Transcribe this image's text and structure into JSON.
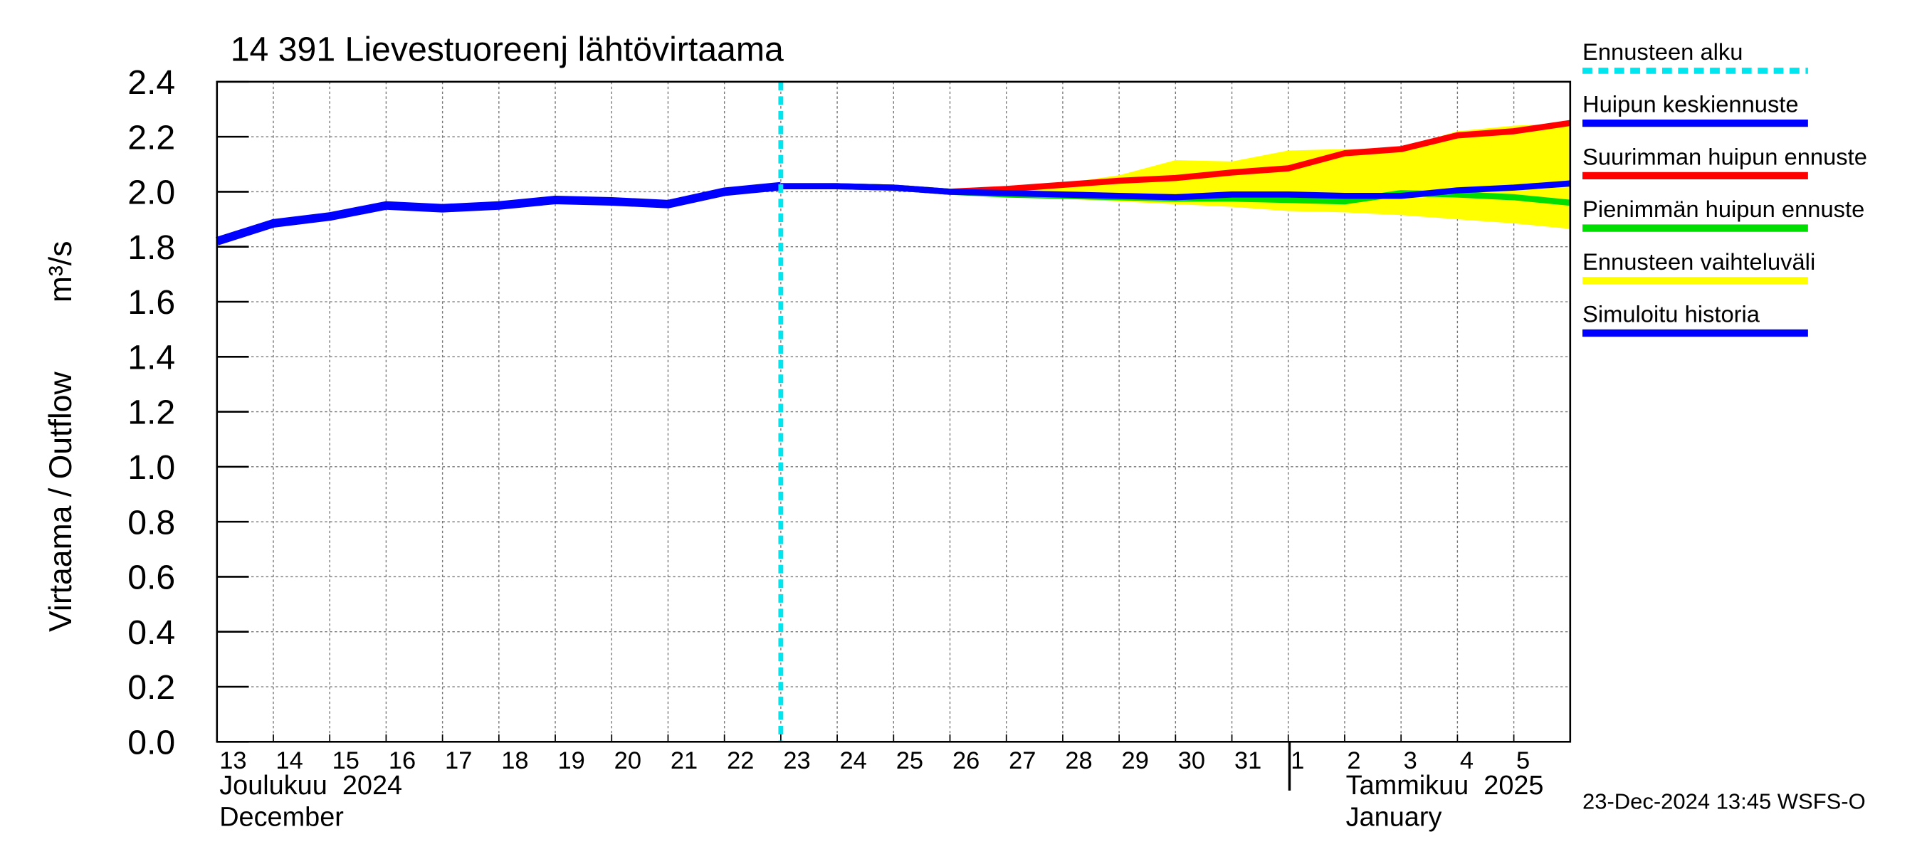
{
  "chart_data": {
    "type": "line",
    "title": "14 391 Lievestuoreenj lähtövirtaama",
    "y_label": "Virtaama / Outflow",
    "y_unit": "m³/s",
    "month_labels": [
      "Joulukuu  2024",
      "December",
      "Tammikuu  2025",
      "January"
    ],
    "timestamp": "23-Dec-2024 13:45 WSFS-O",
    "categories": [
      "13",
      "14",
      "15",
      "16",
      "17",
      "18",
      "19",
      "20",
      "21",
      "22",
      "23",
      "24",
      "25",
      "26",
      "27",
      "28",
      "29",
      "30",
      "31",
      "1",
      "2",
      "3",
      "4",
      "5",
      null
    ],
    "ylim": [
      0,
      2.4
    ],
    "yticks": [
      {
        "value": 0,
        "label": "0.0"
      },
      {
        "value": 0.2,
        "label": "0.2"
      },
      {
        "value": 0.4,
        "label": "0.4"
      },
      {
        "value": 0.6,
        "label": "0.6"
      },
      {
        "value": 0.8,
        "label": "0.8"
      },
      {
        "value": 1,
        "label": "1.0"
      },
      {
        "value": 1.2,
        "label": "1.2"
      },
      {
        "value": 1.4,
        "label": "1.4"
      },
      {
        "value": 1.6,
        "label": "1.6"
      },
      {
        "value": 1.8,
        "label": "1.8"
      },
      {
        "value": 2,
        "label": "2.0"
      },
      {
        "value": 2.2,
        "label": "2.2"
      },
      {
        "value": 2.4,
        "label": "2.4"
      }
    ],
    "grid": true,
    "series": [
      {
        "name": "Ennusteen alku",
        "color": "#00e5ee",
        "style": "dashed"
      },
      {
        "name": "Huipun keskiennuste",
        "color": "#0000ff",
        "values": [
          null,
          null,
          null,
          null,
          null,
          null,
          null,
          null,
          null,
          null,
          2.02,
          2.02,
          2.015,
          2.0,
          1.995,
          1.99,
          1.985,
          1.98,
          1.99,
          1.99,
          1.985,
          1.985,
          2.005,
          2.015,
          2.03
        ]
      },
      {
        "name": "Suurimman huipun ennuste",
        "color": "#ff0000",
        "values": [
          null,
          null,
          null,
          null,
          null,
          null,
          null,
          null,
          null,
          null,
          2.02,
          2.02,
          2.015,
          2.0,
          2.01,
          2.025,
          2.04,
          2.05,
          2.07,
          2.085,
          2.14,
          2.155,
          2.205,
          2.22,
          2.25
        ]
      },
      {
        "name": "Pienimmän huipun ennuste",
        "color": "#00dd00",
        "values": [
          null,
          null,
          null,
          null,
          null,
          null,
          null,
          null,
          null,
          null,
          2.02,
          2.02,
          2.015,
          2.0,
          1.99,
          1.985,
          1.98,
          1.975,
          1.975,
          1.97,
          1.965,
          1.995,
          1.99,
          1.98,
          1.96
        ]
      },
      {
        "name": "Ennusteen vaihteluväli",
        "color": "#ffff00",
        "style": "band",
        "values": [
          null,
          null,
          null,
          null,
          null,
          null,
          null,
          null,
          null,
          null,
          2.02,
          2.02,
          2.015,
          2.0,
          2.01,
          2.03,
          2.06,
          2.115,
          2.11,
          2.15,
          2.155,
          2.16,
          2.22,
          2.24,
          2.25
        ],
        "lower_values": [
          null,
          null,
          null,
          null,
          null,
          null,
          null,
          null,
          null,
          null,
          2.02,
          2.02,
          2.01,
          2.0,
          1.985,
          1.975,
          1.965,
          1.955,
          1.945,
          1.93,
          1.925,
          1.915,
          1.9,
          1.885,
          1.865
        ]
      },
      {
        "name": "Simuloitu historia",
        "color": "#0000ff",
        "values": [
          1.82,
          1.885,
          1.91,
          1.95,
          1.94,
          1.95,
          1.97,
          1.965,
          1.955,
          2.0,
          2.02,
          null,
          null,
          null,
          null,
          null,
          null,
          null,
          null,
          null,
          null,
          null,
          null,
          null,
          null
        ]
      }
    ]
  }
}
